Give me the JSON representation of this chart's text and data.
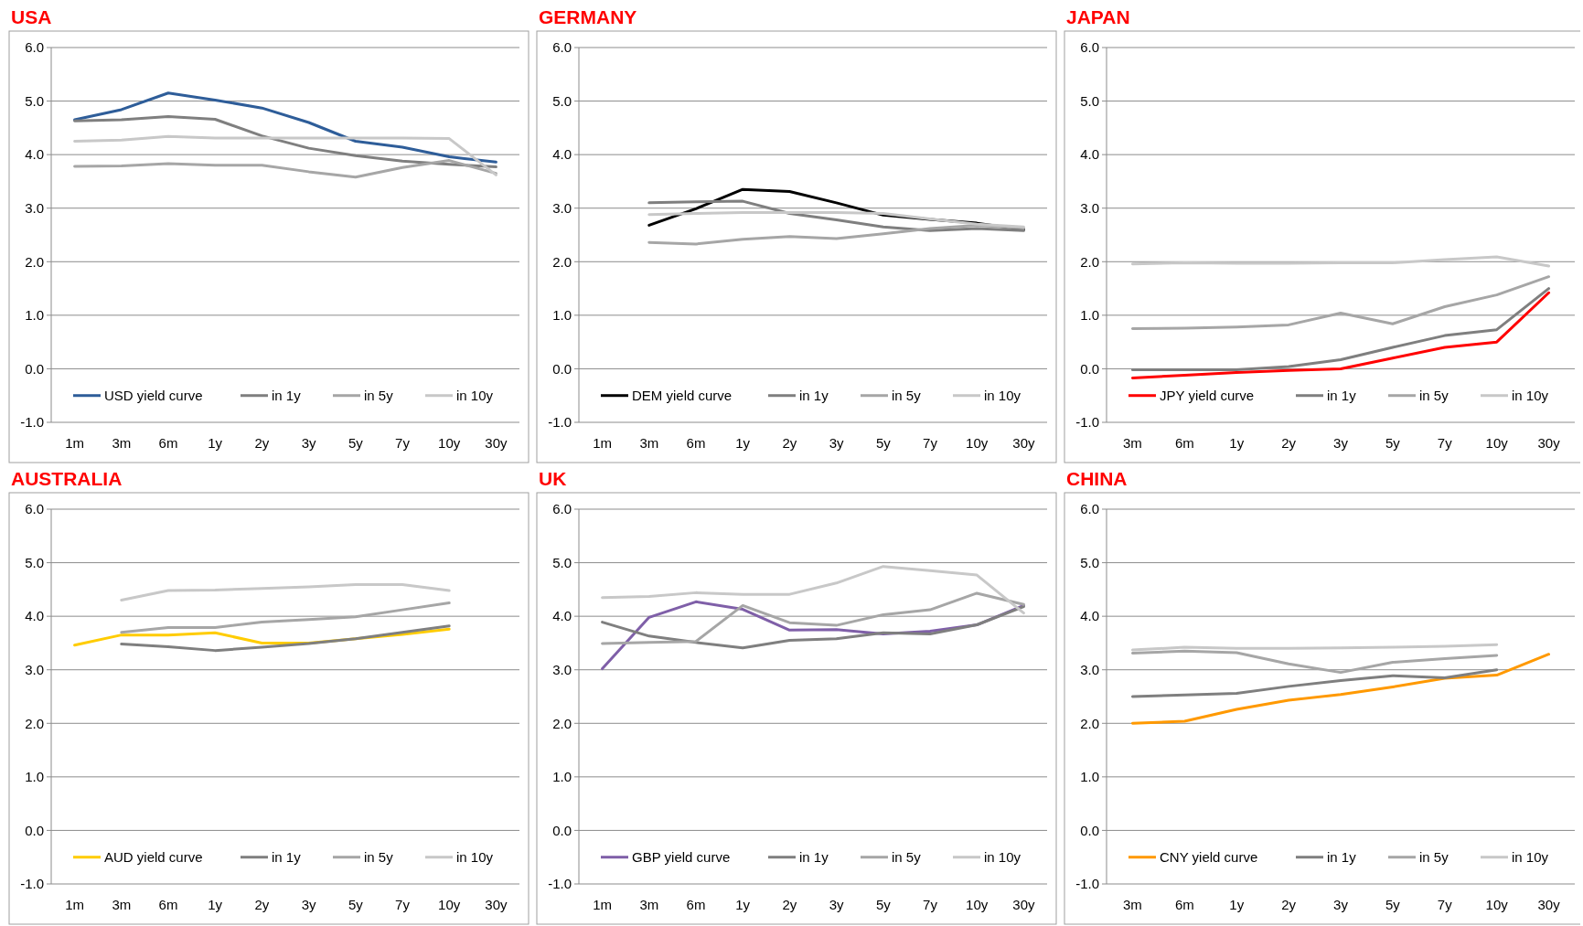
{
  "chart_data": [
    {
      "type": "line",
      "title": "USA",
      "categories": [
        "1m",
        "3m",
        "6m",
        "1y",
        "2y",
        "3y",
        "5y",
        "7y",
        "10y",
        "30y"
      ],
      "ylim": [
        -1,
        6
      ],
      "yticks": [
        {
          "value": -1,
          "label": "-1.0"
        },
        {
          "value": 0,
          "label": "0.0"
        },
        {
          "value": 1,
          "label": "1.0"
        },
        {
          "value": 2,
          "label": "2.0"
        },
        {
          "value": 3,
          "label": "3.0"
        },
        {
          "value": 4,
          "label": "4.0"
        },
        {
          "value": 5,
          "label": "5.0"
        },
        {
          "value": 6,
          "label": "6.0"
        }
      ],
      "grid": "y",
      "legend": "bottom",
      "series": [
        {
          "name": "USD yield curve",
          "color": "#2e5d99",
          "values": [
            4.65,
            4.84,
            5.15,
            5.02,
            4.87,
            4.6,
            4.25,
            4.14,
            3.96,
            3.86
          ]
        },
        {
          "name": "in 1y",
          "color": "#7f7f7f",
          "values": [
            4.63,
            4.65,
            4.71,
            4.66,
            4.35,
            4.12,
            3.98,
            3.88,
            3.82,
            3.77
          ]
        },
        {
          "name": "in 5y",
          "color": "#a6a6a6",
          "values": [
            3.78,
            3.79,
            3.83,
            3.8,
            3.8,
            3.68,
            3.58,
            3.76,
            3.89,
            3.65
          ]
        },
        {
          "name": "in 10y",
          "color": "#c8c8c8",
          "values": [
            4.25,
            4.27,
            4.34,
            4.31,
            4.31,
            4.31,
            4.31,
            4.31,
            4.3,
            3.62
          ]
        }
      ]
    },
    {
      "type": "line",
      "title": "GERMANY",
      "categories": [
        "1m",
        "3m",
        "6m",
        "1y",
        "2y",
        "3y",
        "5y",
        "7y",
        "10y",
        "30y"
      ],
      "ylim": [
        -1,
        6
      ],
      "yticks": [
        {
          "value": -1,
          "label": "-1.0"
        },
        {
          "value": 0,
          "label": "0.0"
        },
        {
          "value": 1,
          "label": "1.0"
        },
        {
          "value": 2,
          "label": "2.0"
        },
        {
          "value": 3,
          "label": "3.0"
        },
        {
          "value": 4,
          "label": "4.0"
        },
        {
          "value": 5,
          "label": "5.0"
        },
        {
          "value": 6,
          "label": "6.0"
        }
      ],
      "grid": "y",
      "legend": "bottom",
      "series": [
        {
          "name": "DEM yield curve",
          "color": "#000000",
          "values": [
            null,
            2.68,
            2.99,
            3.35,
            3.31,
            3.1,
            2.87,
            2.79,
            2.72,
            2.6
          ]
        },
        {
          "name": "in 1y",
          "color": "#7f7f7f",
          "values": [
            null,
            3.1,
            3.12,
            3.13,
            2.9,
            2.78,
            2.65,
            2.58,
            2.62,
            2.58
          ]
        },
        {
          "name": "in 5y",
          "color": "#a6a6a6",
          "values": [
            null,
            2.36,
            2.33,
            2.42,
            2.47,
            2.43,
            2.52,
            2.62,
            2.68,
            2.63
          ]
        },
        {
          "name": "in 10y",
          "color": "#c8c8c8",
          "values": [
            null,
            2.88,
            2.9,
            2.92,
            2.92,
            2.92,
            2.9,
            2.8,
            2.7,
            2.65
          ]
        }
      ]
    },
    {
      "type": "line",
      "title": "JAPAN",
      "categories": [
        "3m",
        "6m",
        "1y",
        "2y",
        "3y",
        "5y",
        "7y",
        "10y",
        "30y"
      ],
      "ylim": [
        -1,
        6
      ],
      "yticks": [
        {
          "value": -1,
          "label": "-1.0"
        },
        {
          "value": 0,
          "label": "0.0"
        },
        {
          "value": 1,
          "label": "1.0"
        },
        {
          "value": 2,
          "label": "2.0"
        },
        {
          "value": 3,
          "label": "3.0"
        },
        {
          "value": 4,
          "label": "4.0"
        },
        {
          "value": 5,
          "label": "5.0"
        },
        {
          "value": 6,
          "label": "6.0"
        }
      ],
      "grid": "y",
      "legend": "bottom",
      "series": [
        {
          "name": "JPY yield curve",
          "color": "#ff0000",
          "values": [
            -0.17,
            -0.12,
            -0.07,
            -0.03,
            0.0,
            0.2,
            0.4,
            0.5,
            1.42
          ]
        },
        {
          "name": "in 1y",
          "color": "#7f7f7f",
          "values": [
            -0.02,
            -0.02,
            -0.02,
            0.04,
            0.17,
            0.4,
            0.62,
            0.73,
            1.5
          ]
        },
        {
          "name": "in 5y",
          "color": "#a6a6a6",
          "values": [
            0.75,
            0.76,
            0.78,
            0.82,
            1.04,
            0.84,
            1.16,
            1.38,
            1.72
          ]
        },
        {
          "name": "in 10y",
          "color": "#c8c8c8",
          "values": [
            1.96,
            1.98,
            1.97,
            1.97,
            1.98,
            1.98,
            2.04,
            2.09,
            1.92
          ]
        }
      ]
    },
    {
      "type": "line",
      "title": "AUSTRALIA",
      "categories": [
        "1m",
        "3m",
        "6m",
        "1y",
        "2y",
        "3y",
        "5y",
        "7y",
        "10y",
        "30y"
      ],
      "ylim": [
        -1,
        6
      ],
      "yticks": [
        {
          "value": -1,
          "label": "-1.0"
        },
        {
          "value": 0,
          "label": "0.0"
        },
        {
          "value": 1,
          "label": "1.0"
        },
        {
          "value": 2,
          "label": "2.0"
        },
        {
          "value": 3,
          "label": "3.0"
        },
        {
          "value": 4,
          "label": "4.0"
        },
        {
          "value": 5,
          "label": "5.0"
        },
        {
          "value": 6,
          "label": "6.0"
        }
      ],
      "grid": "y",
      "legend": "bottom",
      "series": [
        {
          "name": "AUD yield curve",
          "color": "#ffcc00",
          "values": [
            3.46,
            3.65,
            3.65,
            3.69,
            3.5,
            3.5,
            3.58,
            3.66,
            3.76,
            null
          ]
        },
        {
          "name": "in 1y",
          "color": "#7f7f7f",
          "values": [
            null,
            3.48,
            3.43,
            3.36,
            3.42,
            3.49,
            3.58,
            3.7,
            3.82,
            null
          ]
        },
        {
          "name": "in 5y",
          "color": "#a6a6a6",
          "values": [
            null,
            3.7,
            3.79,
            3.79,
            3.89,
            3.94,
            3.99,
            4.12,
            4.25,
            null
          ]
        },
        {
          "name": "in 10y",
          "color": "#c8c8c8",
          "values": [
            null,
            4.3,
            4.48,
            4.49,
            4.52,
            4.55,
            4.59,
            4.59,
            4.48,
            null
          ]
        }
      ]
    },
    {
      "type": "line",
      "title": "UK",
      "categories": [
        "1m",
        "3m",
        "6m",
        "1y",
        "2y",
        "3y",
        "5y",
        "7y",
        "10y",
        "30y"
      ],
      "ylim": [
        -1,
        6
      ],
      "yticks": [
        {
          "value": -1,
          "label": "-1.0"
        },
        {
          "value": 0,
          "label": "0.0"
        },
        {
          "value": 1,
          "label": "1.0"
        },
        {
          "value": 2,
          "label": "2.0"
        },
        {
          "value": 3,
          "label": "3.0"
        },
        {
          "value": 4,
          "label": "4.0"
        },
        {
          "value": 5,
          "label": "5.0"
        },
        {
          "value": 6,
          "label": "6.0"
        }
      ],
      "grid": "y",
      "legend": "bottom",
      "series": [
        {
          "name": "GBP yield curve",
          "color": "#7f5fa8",
          "values": [
            3.02,
            3.98,
            4.27,
            4.13,
            3.74,
            3.75,
            3.67,
            3.72,
            3.84,
            4.2
          ]
        },
        {
          "name": "in 1y",
          "color": "#7f7f7f",
          "values": [
            3.89,
            3.63,
            3.51,
            3.41,
            3.55,
            3.58,
            3.69,
            3.67,
            3.84,
            4.18
          ]
        },
        {
          "name": "in 5y",
          "color": "#a6a6a6",
          "values": [
            3.49,
            3.51,
            3.53,
            4.2,
            3.88,
            3.83,
            4.03,
            4.12,
            4.43,
            4.22
          ]
        },
        {
          "name": "in 10y",
          "color": "#c8c8c8",
          "values": [
            4.35,
            4.37,
            4.44,
            4.41,
            4.41,
            4.62,
            4.93,
            4.85,
            4.77,
            4.06
          ]
        }
      ]
    },
    {
      "type": "line",
      "title": "CHINA",
      "categories": [
        "3m",
        "6m",
        "1y",
        "2y",
        "3y",
        "5y",
        "7y",
        "10y",
        "30y"
      ],
      "ylim": [
        -1,
        6
      ],
      "yticks": [
        {
          "value": -1,
          "label": "-1.0"
        },
        {
          "value": 0,
          "label": "0.0"
        },
        {
          "value": 1,
          "label": "1.0"
        },
        {
          "value": 2,
          "label": "2.0"
        },
        {
          "value": 3,
          "label": "3.0"
        },
        {
          "value": 4,
          "label": "4.0"
        },
        {
          "value": 5,
          "label": "5.0"
        },
        {
          "value": 6,
          "label": "6.0"
        }
      ],
      "grid": "y",
      "legend": "bottom",
      "series": [
        {
          "name": "CNY yield curve",
          "color": "#ff9900",
          "values": [
            2.0,
            2.04,
            2.26,
            2.43,
            2.54,
            2.68,
            2.84,
            2.9,
            3.29
          ]
        },
        {
          "name": "in 1y",
          "color": "#7f7f7f",
          "values": [
            2.5,
            2.53,
            2.56,
            2.69,
            2.8,
            2.89,
            2.85,
            3.0,
            null
          ]
        },
        {
          "name": "in 5y",
          "color": "#a6a6a6",
          "values": [
            3.31,
            3.35,
            3.32,
            3.11,
            2.95,
            3.14,
            3.21,
            3.27,
            null
          ]
        },
        {
          "name": "in 10y",
          "color": "#c8c8c8",
          "values": [
            3.37,
            3.42,
            3.4,
            3.4,
            3.41,
            3.42,
            3.44,
            3.47,
            null
          ]
        }
      ]
    }
  ]
}
